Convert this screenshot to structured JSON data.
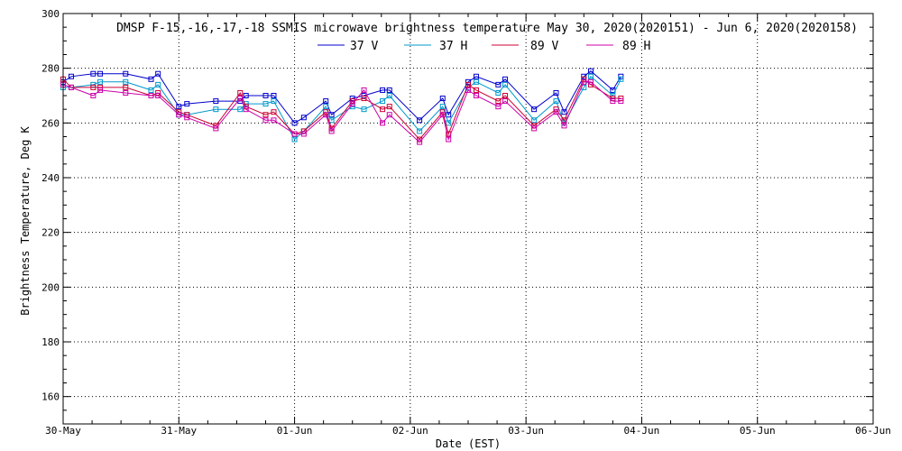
{
  "chart_data": {
    "type": "line",
    "title": "DMSP F-15,-16,-17,-18 SSMIS microwave brightness temperature May 30, 2020(2020151) - Jun  6, 2020(2020158)",
    "xlabel": "Date (EST)",
    "ylabel": "Brightness Temperature, Deg K",
    "x_unit": "days since 30-May-2020 00:00",
    "xlim": [
      0,
      7
    ],
    "ylim": [
      150,
      300
    ],
    "x_ticks": [
      {
        "value": 0,
        "label": "30-May"
      },
      {
        "value": 1,
        "label": "31-May"
      },
      {
        "value": 2,
        "label": "01-Jun"
      },
      {
        "value": 3,
        "label": "02-Jun"
      },
      {
        "value": 4,
        "label": "03-Jun"
      },
      {
        "value": 5,
        "label": "04-Jun"
      },
      {
        "value": 6,
        "label": "05-Jun"
      },
      {
        "value": 7,
        "label": "06-Jun"
      }
    ],
    "y_ticks": [
      160,
      180,
      200,
      220,
      240,
      260,
      280,
      300
    ],
    "grid": true,
    "legend_position": "top",
    "series": [
      {
        "name": "37 V",
        "color": "#0000cc",
        "x": [
          0.0,
          0.07,
          0.26,
          0.32,
          0.54,
          0.76,
          0.82,
          1.0,
          1.07,
          1.32,
          1.53,
          1.58,
          1.75,
          1.82,
          2.0,
          2.08,
          2.27,
          2.32,
          2.5,
          2.6,
          2.76,
          2.82,
          3.08,
          3.28,
          3.33,
          3.5,
          3.57,
          3.76,
          3.82,
          4.07,
          4.26,
          4.33,
          4.5,
          4.56,
          4.75,
          4.82
        ],
        "y": [
          275,
          277,
          278,
          278,
          278,
          276,
          278,
          266,
          267,
          268,
          268,
          270,
          270,
          270,
          260,
          262,
          268,
          263,
          269,
          270,
          272,
          272,
          261,
          269,
          263,
          275,
          277,
          274,
          276,
          265,
          271,
          264,
          277,
          279,
          272,
          277
        ]
      },
      {
        "name": "37 H",
        "color": "#0099cc",
        "x": [
          0.0,
          0.07,
          0.26,
          0.32,
          0.54,
          0.76,
          0.82,
          1.0,
          1.07,
          1.32,
          1.53,
          1.58,
          1.75,
          1.82,
          2.0,
          2.08,
          2.27,
          2.32,
          2.5,
          2.6,
          2.76,
          2.82,
          3.08,
          3.28,
          3.33,
          3.5,
          3.57,
          3.76,
          3.82,
          4.07,
          4.26,
          4.33,
          4.5,
          4.56,
          4.75,
          4.82
        ],
        "y": [
          273,
          273,
          274,
          275,
          275,
          272,
          274,
          263,
          263,
          265,
          265,
          267,
          267,
          268,
          254,
          257,
          266,
          261,
          266,
          265,
          268,
          270,
          257,
          266,
          260,
          273,
          275,
          271,
          274,
          261,
          268,
          260,
          273,
          277,
          270,
          276
        ]
      },
      {
        "name": "89 V",
        "color": "#cc0033",
        "x": [
          0.0,
          0.07,
          0.26,
          0.32,
          0.54,
          0.76,
          0.82,
          1.0,
          1.07,
          1.32,
          1.53,
          1.58,
          1.75,
          1.82,
          2.0,
          2.08,
          2.27,
          2.32,
          2.5,
          2.6,
          2.76,
          2.82,
          3.08,
          3.28,
          3.33,
          3.5,
          3.57,
          3.76,
          3.82,
          4.07,
          4.26,
          4.33,
          4.5,
          4.56,
          4.75,
          4.82
        ],
        "y": [
          276,
          273,
          273,
          273,
          273,
          270,
          271,
          264,
          263,
          259,
          271,
          266,
          263,
          264,
          256,
          257,
          264,
          258,
          268,
          269,
          265,
          266,
          254,
          264,
          256,
          274,
          272,
          268,
          270,
          259,
          265,
          261,
          276,
          274,
          269,
          269
        ]
      },
      {
        "name": "89 H",
        "color": "#cc00aa",
        "x": [
          0.0,
          0.07,
          0.26,
          0.32,
          0.54,
          0.76,
          0.82,
          1.0,
          1.07,
          1.32,
          1.53,
          1.58,
          1.75,
          1.82,
          2.0,
          2.08,
          2.27,
          2.32,
          2.5,
          2.6,
          2.76,
          2.82,
          3.08,
          3.28,
          3.33,
          3.5,
          3.57,
          3.76,
          3.82,
          4.07,
          4.26,
          4.33,
          4.5,
          4.56,
          4.75,
          4.82
        ],
        "y": [
          274,
          273,
          270,
          272,
          271,
          270,
          270,
          263,
          262,
          258,
          269,
          265,
          261,
          261,
          256,
          256,
          263,
          257,
          267,
          272,
          260,
          263,
          253,
          263,
          254,
          272,
          270,
          266,
          268,
          258,
          264,
          259,
          275,
          275,
          268,
          268
        ]
      }
    ]
  }
}
